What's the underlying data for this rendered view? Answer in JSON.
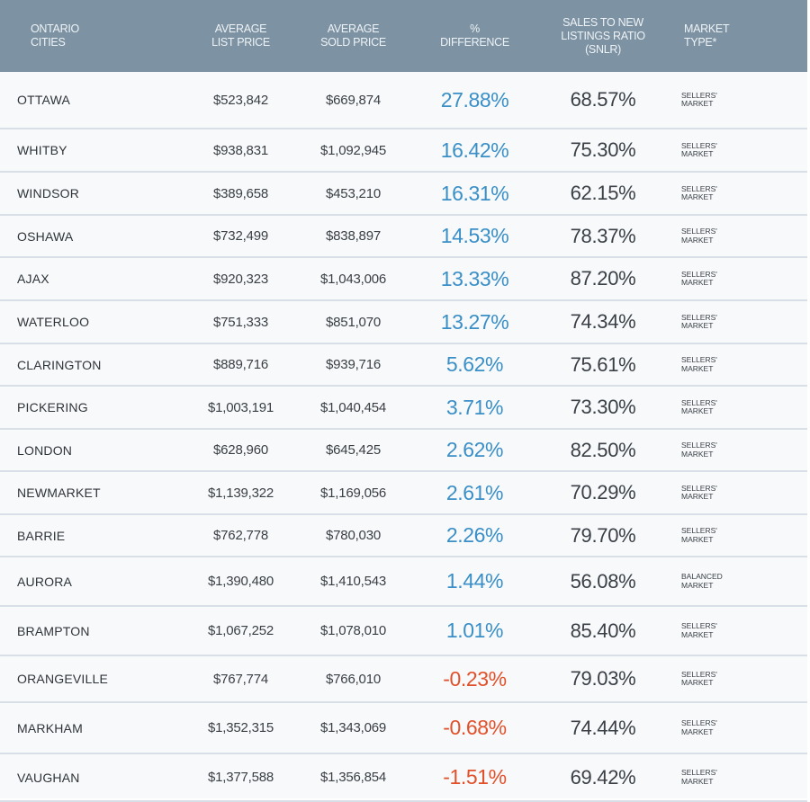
{
  "header": {
    "city": "ONTARIO\nCITIES",
    "list_price": "AVERAGE\nLIST PRICE",
    "sold_price": "AVERAGE\nSOLD PRICE",
    "difference": "%\nDIFFERENCE",
    "snlr": "SALES TO NEW\nLISTINGS RATIO\n(SNLR)",
    "market_type": "MARKET\nTYPE*"
  },
  "colors": {
    "header_bg": "#7d92a2",
    "positive": "#3a8fc7",
    "negative": "#e2502a"
  },
  "rows": [
    {
      "city": "OTTAWA",
      "list_price": "$523,842",
      "sold_price": "$669,874",
      "difference": "27.88%",
      "snlr": "68.57%",
      "type": "SELLERS'\nMARKET",
      "negative": false
    },
    {
      "city": "WHITBY",
      "list_price": "$938,831",
      "sold_price": "$1,092,945",
      "difference": "16.42%",
      "snlr": "75.30%",
      "type": "SELLERS'\nMARKET",
      "negative": false
    },
    {
      "city": "WINDSOR",
      "list_price": "$389,658",
      "sold_price": "$453,210",
      "difference": "16.31%",
      "snlr": "62.15%",
      "type": "SELLERS'\nMARKET",
      "negative": false
    },
    {
      "city": "OSHAWA",
      "list_price": "$732,499",
      "sold_price": "$838,897",
      "difference": "14.53%",
      "snlr": "78.37%",
      "type": "SELLERS'\nMARKET",
      "negative": false
    },
    {
      "city": "AJAX",
      "list_price": "$920,323",
      "sold_price": "$1,043,006",
      "difference": "13.33%",
      "snlr": "87.20%",
      "type": "SELLERS'\nMARKET",
      "negative": false
    },
    {
      "city": "WATERLOO",
      "list_price": "$751,333",
      "sold_price": "$851,070",
      "difference": "13.27%",
      "snlr": "74.34%",
      "type": "SELLERS'\nMARKET",
      "negative": false
    },
    {
      "city": "CLARINGTON",
      "list_price": "$889,716",
      "sold_price": "$939,716",
      "difference": "5.62%",
      "snlr": "75.61%",
      "type": "SELLERS'\nMARKET",
      "negative": false
    },
    {
      "city": "PICKERING",
      "list_price": "$1,003,191",
      "sold_price": "$1,040,454",
      "difference": "3.71%",
      "snlr": "73.30%",
      "type": "SELLERS'\nMARKET",
      "negative": false
    },
    {
      "city": "LONDON",
      "list_price": "$628,960",
      "sold_price": "$645,425",
      "difference": "2.62%",
      "snlr": "82.50%",
      "type": "SELLERS'\nMARKET",
      "negative": false
    },
    {
      "city": "NEWMARKET",
      "list_price": "$1,139,322",
      "sold_price": "$1,169,056",
      "difference": "2.61%",
      "snlr": "70.29%",
      "type": "SELLERS'\nMARKET",
      "negative": false
    },
    {
      "city": "BARRIE",
      "list_price": "$762,778",
      "sold_price": "$780,030",
      "difference": "2.26%",
      "snlr": "79.70%",
      "type": "SELLERS'\nMARKET",
      "negative": false
    },
    {
      "city": "AURORA",
      "list_price": "$1,390,480",
      "sold_price": "$1,410,543",
      "difference": "1.44%",
      "snlr": "56.08%",
      "type": "BALANCED\nMARKET",
      "negative": false
    },
    {
      "city": "BRAMPTON",
      "list_price": "$1,067,252",
      "sold_price": "$1,078,010",
      "difference": "1.01%",
      "snlr": "85.40%",
      "type": "SELLERS'\nMARKET",
      "negative": false
    },
    {
      "city": "ORANGEVILLE",
      "list_price": "$767,774",
      "sold_price": "$766,010",
      "difference": "-0.23%",
      "snlr": "79.03%",
      "type": "SELLERS'\nMARKET",
      "negative": true
    },
    {
      "city": "MARKHAM",
      "list_price": "$1,352,315",
      "sold_price": "$1,343,069",
      "difference": "-0.68%",
      "snlr": "74.44%",
      "type": "SELLERS'\nMARKET",
      "negative": true
    },
    {
      "city": "VAUGHAN",
      "list_price": "$1,377,588",
      "sold_price": "$1,356,854",
      "difference": "-1.51%",
      "snlr": "69.42%",
      "type": "SELLERS'\nMARKET",
      "negative": true
    }
  ]
}
